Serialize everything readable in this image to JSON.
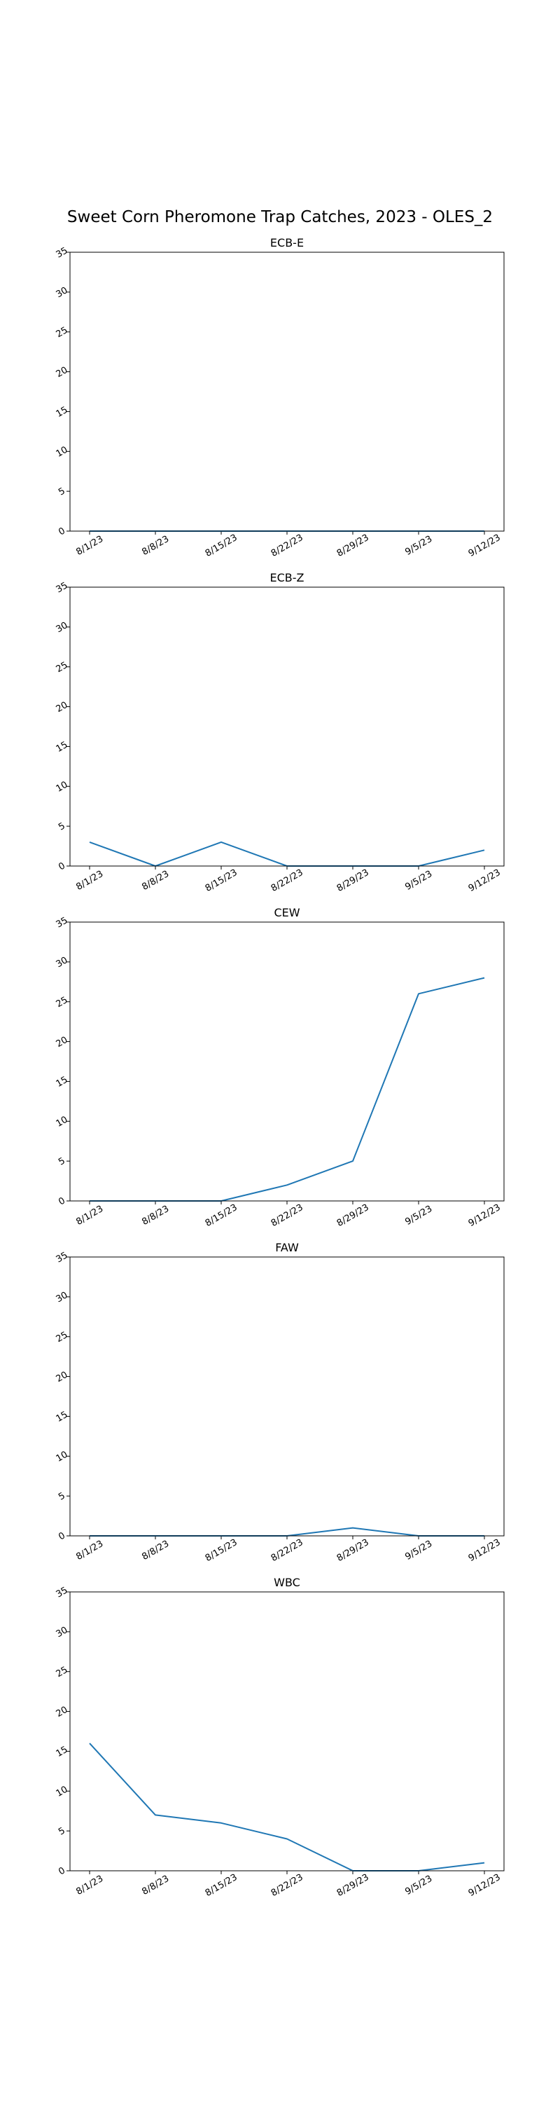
{
  "figure": {
    "title": "Sweet Corn Pheromone Trap Catches, 2023 - OLES_2"
  },
  "chart_data": [
    {
      "type": "line",
      "title": "ECB-E",
      "categories": [
        "8/1/23",
        "8/8/23",
        "8/15/23",
        "8/22/23",
        "8/29/23",
        "9/5/23",
        "9/12/23"
      ],
      "values": [
        0,
        0,
        0,
        0,
        0,
        0,
        0
      ],
      "ylim": [
        0,
        35
      ],
      "yticks": [
        0,
        5,
        10,
        15,
        20,
        25,
        30,
        35
      ],
      "xlabel": "",
      "ylabel": "",
      "grid": false,
      "color": "#1f77b4"
    },
    {
      "type": "line",
      "title": "ECB-Z",
      "categories": [
        "8/1/23",
        "8/8/23",
        "8/15/23",
        "8/22/23",
        "8/29/23",
        "9/5/23",
        "9/12/23"
      ],
      "values": [
        3,
        0,
        3,
        0,
        0,
        0,
        2
      ],
      "ylim": [
        0,
        35
      ],
      "yticks": [
        0,
        5,
        10,
        15,
        20,
        25,
        30,
        35
      ],
      "xlabel": "",
      "ylabel": "",
      "grid": false,
      "color": "#1f77b4"
    },
    {
      "type": "line",
      "title": "CEW",
      "categories": [
        "8/1/23",
        "8/8/23",
        "8/15/23",
        "8/22/23",
        "8/29/23",
        "9/5/23",
        "9/12/23"
      ],
      "values": [
        0,
        0,
        0,
        2,
        5,
        26,
        28
      ],
      "ylim": [
        0,
        35
      ],
      "yticks": [
        0,
        5,
        10,
        15,
        20,
        25,
        30,
        35
      ],
      "xlabel": "",
      "ylabel": "",
      "grid": false,
      "color": "#1f77b4"
    },
    {
      "type": "line",
      "title": "FAW",
      "categories": [
        "8/1/23",
        "8/8/23",
        "8/15/23",
        "8/22/23",
        "8/29/23",
        "9/5/23",
        "9/12/23"
      ],
      "values": [
        0,
        0,
        0,
        0,
        1,
        0,
        0
      ],
      "ylim": [
        0,
        35
      ],
      "yticks": [
        0,
        5,
        10,
        15,
        20,
        25,
        30,
        35
      ],
      "xlabel": "",
      "ylabel": "",
      "grid": false,
      "color": "#1f77b4"
    },
    {
      "type": "line",
      "title": "WBC",
      "categories": [
        "8/1/23",
        "8/8/23",
        "8/15/23",
        "8/22/23",
        "8/29/23",
        "9/5/23",
        "9/12/23"
      ],
      "values": [
        16,
        7,
        6,
        4,
        0,
        0,
        1
      ],
      "ylim": [
        0,
        35
      ],
      "yticks": [
        0,
        5,
        10,
        15,
        20,
        25,
        30,
        35
      ],
      "xlabel": "",
      "ylabel": "",
      "grid": false,
      "color": "#1f77b4"
    }
  ]
}
